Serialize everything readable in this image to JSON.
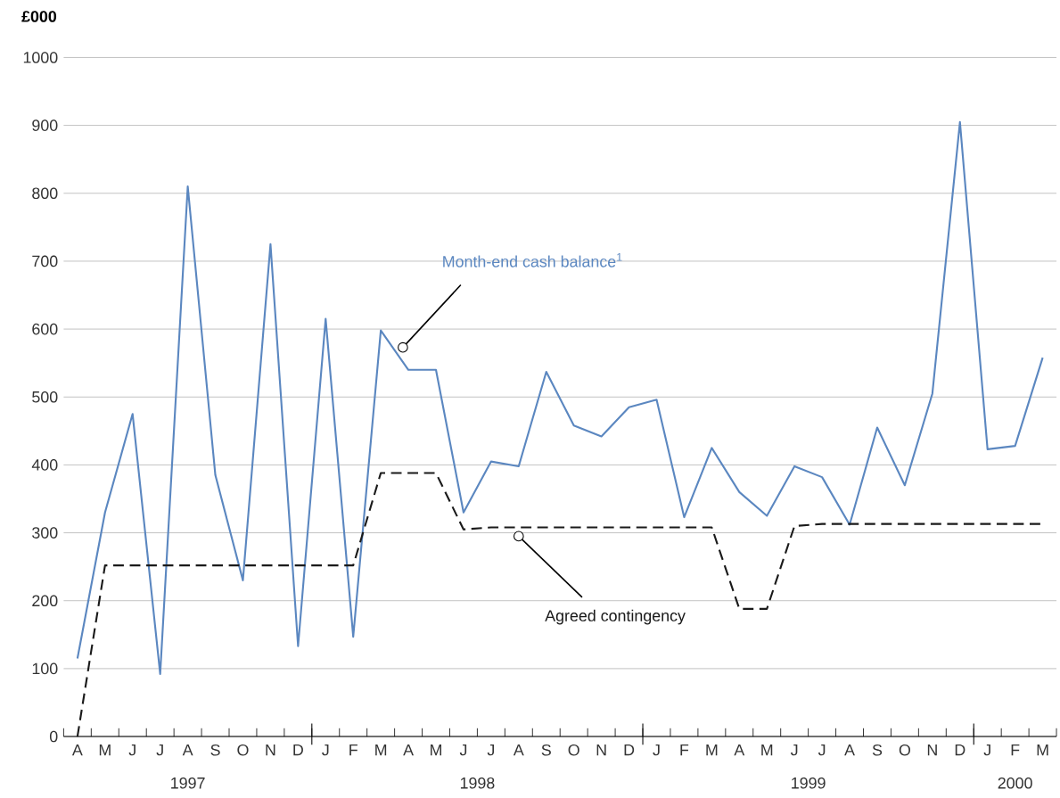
{
  "chart_data": {
    "type": "line",
    "ylabel": "£000",
    "categories": [
      "A",
      "M",
      "J",
      "J",
      "A",
      "S",
      "O",
      "N",
      "D",
      "J",
      "F",
      "M",
      "A",
      "M",
      "J",
      "J",
      "A",
      "S",
      "O",
      "N",
      "D",
      "J",
      "F",
      "M",
      "A",
      "M",
      "J",
      "J",
      "A",
      "S",
      "O",
      "N",
      "D",
      "J",
      "F",
      "M"
    ],
    "series": [
      {
        "name": "Month-end cash balance$^{1}$",
        "color": "#5b87c0",
        "line_style": "solid",
        "values": [
          115,
          330,
          475,
          92,
          810,
          385,
          230,
          725,
          133,
          615,
          147,
          598,
          540,
          540,
          330,
          405,
          398,
          537,
          458,
          442,
          485,
          496,
          323,
          425,
          360,
          325,
          398,
          382,
          312,
          455,
          370,
          505,
          905,
          423,
          428,
          558
        ]
      },
      {
        "name": "Agreed contingency",
        "color": "#1a1a1a",
        "line_style": "dashed",
        "values": [
          0,
          252,
          252,
          252,
          252,
          252,
          252,
          252,
          252,
          252,
          252,
          388,
          388,
          388,
          305,
          308,
          308,
          308,
          308,
          308,
          308,
          308,
          308,
          308,
          188,
          188,
          310,
          313,
          313,
          313,
          313,
          313,
          313,
          313,
          313,
          313
        ]
      }
    ],
    "annotations": [
      "1997",
      "1998",
      "1999",
      "2000"
    ],
    "ylim": [
      0,
      1000
    ],
    "yticks": [
      0,
      100,
      200,
      300,
      400,
      500,
      600,
      700,
      800,
      900,
      1000
    ],
    "grid": "y",
    "marker": "none",
    "legend": false
  }
}
